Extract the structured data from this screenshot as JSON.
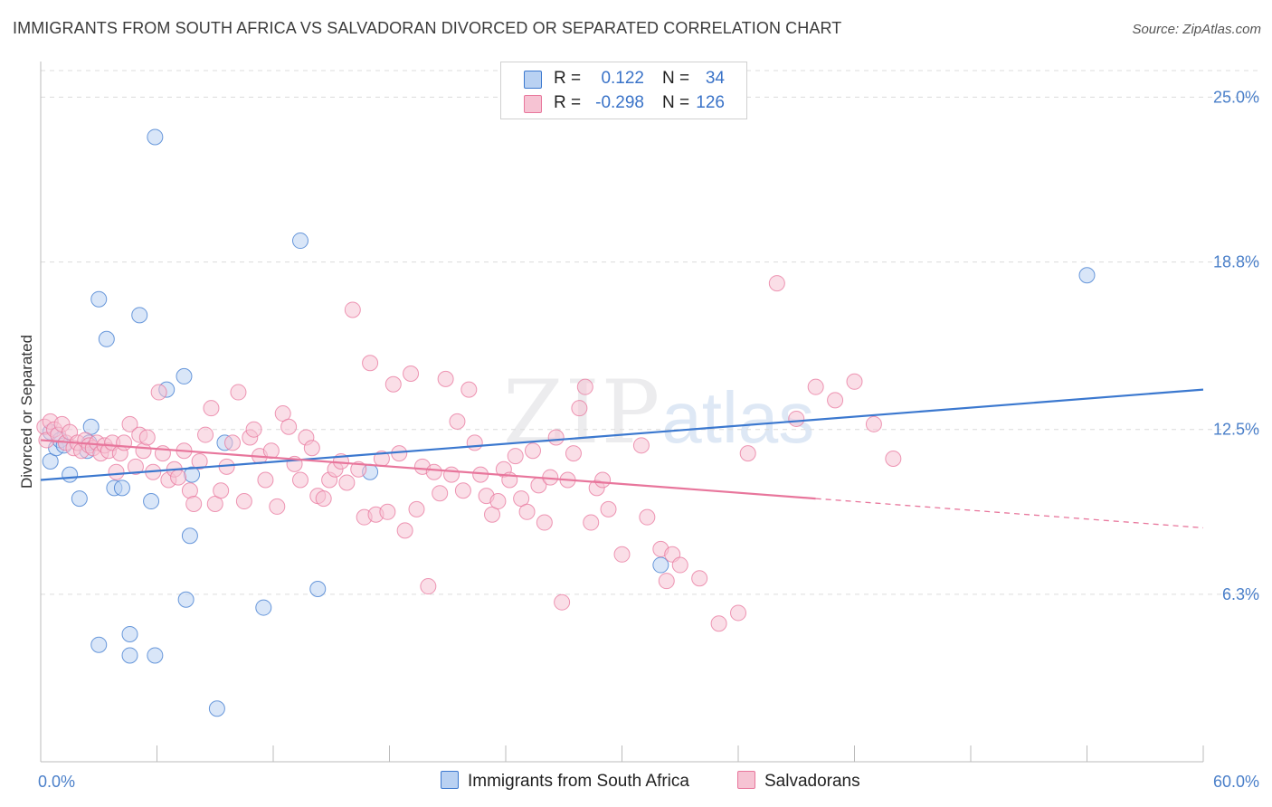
{
  "title": "IMMIGRANTS FROM SOUTH AFRICA VS SALVADORAN DIVORCED OR SEPARATED CORRELATION CHART",
  "source": "Source: ZipAtlas.com",
  "watermark": {
    "zip": "ZIP",
    "atlas": "atlas"
  },
  "colors": {
    "blue": "#3b78cf",
    "pink": "#e8769c",
    "blue_fill": "#b9d1f2",
    "pink_fill": "#f6c3d3",
    "tick_label": "#4a7fc9"
  },
  "legend_top": {
    "rows": [
      {
        "swatch": "blue",
        "r_label": "R =",
        "r_value": "0.122",
        "n_label": "N =",
        "n_value": "34"
      },
      {
        "swatch": "pink",
        "r_label": "R =",
        "r_value": "-0.298",
        "n_label": "N =",
        "n_value": "126"
      }
    ]
  },
  "legend_bottom": [
    {
      "swatch": "blue",
      "label": "Immigrants from South Africa"
    },
    {
      "swatch": "pink",
      "label": "Salvadorans"
    }
  ],
  "chart_data": {
    "type": "scatter",
    "title": "IMMIGRANTS FROM SOUTH AFRICA VS SALVADORAN DIVORCED OR SEPARATED CORRELATION CHART",
    "xlabel": "",
    "ylabel": "Divorced or Separated",
    "xlim": [
      0,
      60
    ],
    "ylim": [
      0,
      26
    ],
    "x_tick_labels": [
      {
        "value": 0,
        "label": "0.0%"
      },
      {
        "value": 60,
        "label": "60.0%"
      }
    ],
    "y_tick_labels": [
      {
        "value": 6.3,
        "label": "6.3%"
      },
      {
        "value": 12.5,
        "label": "12.5%"
      },
      {
        "value": 18.8,
        "label": "18.8%"
      },
      {
        "value": 25.0,
        "label": "25.0%"
      }
    ],
    "grid": true,
    "series": [
      {
        "name": "Immigrants from South Africa",
        "color": "blue",
        "points": [
          [
            0.5,
            12.4
          ],
          [
            0.5,
            11.3
          ],
          [
            0.8,
            11.8
          ],
          [
            1.0,
            12.1
          ],
          [
            1.2,
            11.9
          ],
          [
            1.5,
            10.8
          ],
          [
            2.0,
            9.9
          ],
          [
            2.4,
            11.7
          ],
          [
            2.6,
            12.6
          ],
          [
            2.5,
            12.0
          ],
          [
            3.0,
            4.4
          ],
          [
            3.0,
            17.4
          ],
          [
            3.4,
            15.9
          ],
          [
            3.8,
            10.3
          ],
          [
            4.2,
            10.3
          ],
          [
            4.6,
            4.0
          ],
          [
            4.6,
            4.8
          ],
          [
            5.1,
            16.8
          ],
          [
            5.7,
            9.8
          ],
          [
            5.9,
            23.5
          ],
          [
            5.9,
            4.0
          ],
          [
            6.5,
            14.0
          ],
          [
            7.4,
            14.5
          ],
          [
            7.5,
            6.1
          ],
          [
            7.8,
            10.8
          ],
          [
            7.7,
            8.5
          ],
          [
            9.1,
            2.0
          ],
          [
            9.5,
            12.0
          ],
          [
            11.5,
            5.8
          ],
          [
            13.4,
            19.6
          ],
          [
            14.3,
            6.5
          ],
          [
            17.0,
            10.9
          ],
          [
            32.0,
            7.4
          ],
          [
            54.0,
            18.3
          ]
        ],
        "trendline": {
          "x": [
            0,
            60
          ],
          "y": [
            10.6,
            14.0
          ]
        }
      },
      {
        "name": "Salvadorans",
        "color": "pink",
        "points": [
          [
            0.2,
            12.6
          ],
          [
            0.3,
            12.1
          ],
          [
            0.5,
            12.8
          ],
          [
            0.7,
            12.5
          ],
          [
            0.9,
            12.3
          ],
          [
            1.1,
            12.7
          ],
          [
            1.3,
            12.0
          ],
          [
            1.5,
            12.4
          ],
          [
            1.7,
            11.8
          ],
          [
            1.9,
            12.0
          ],
          [
            2.1,
            11.7
          ],
          [
            2.3,
            12.1
          ],
          [
            2.5,
            11.9
          ],
          [
            2.7,
            11.8
          ],
          [
            2.9,
            12.0
          ],
          [
            3.1,
            11.6
          ],
          [
            3.3,
            11.9
          ],
          [
            3.5,
            11.7
          ],
          [
            3.7,
            12.0
          ],
          [
            3.9,
            10.9
          ],
          [
            4.1,
            11.6
          ],
          [
            4.3,
            12.0
          ],
          [
            4.6,
            12.7
          ],
          [
            4.9,
            11.1
          ],
          [
            5.1,
            12.3
          ],
          [
            5.3,
            11.7
          ],
          [
            5.5,
            12.2
          ],
          [
            5.8,
            10.9
          ],
          [
            6.1,
            13.9
          ],
          [
            6.3,
            11.6
          ],
          [
            6.6,
            10.6
          ],
          [
            6.9,
            11.0
          ],
          [
            7.1,
            10.7
          ],
          [
            7.4,
            11.7
          ],
          [
            7.7,
            10.2
          ],
          [
            7.9,
            9.7
          ],
          [
            8.2,
            11.3
          ],
          [
            8.5,
            12.3
          ],
          [
            8.8,
            13.3
          ],
          [
            9.0,
            9.7
          ],
          [
            9.3,
            10.2
          ],
          [
            9.6,
            11.1
          ],
          [
            9.9,
            12.0
          ],
          [
            10.2,
            13.9
          ],
          [
            10.5,
            9.8
          ],
          [
            10.8,
            12.2
          ],
          [
            11.0,
            12.5
          ],
          [
            11.3,
            11.5
          ],
          [
            11.6,
            10.6
          ],
          [
            11.9,
            11.7
          ],
          [
            12.2,
            9.6
          ],
          [
            12.5,
            13.1
          ],
          [
            12.8,
            12.6
          ],
          [
            13.1,
            11.2
          ],
          [
            13.4,
            10.6
          ],
          [
            13.7,
            12.2
          ],
          [
            14.0,
            11.8
          ],
          [
            14.3,
            10.0
          ],
          [
            14.6,
            9.9
          ],
          [
            14.9,
            10.6
          ],
          [
            15.2,
            11.0
          ],
          [
            15.5,
            11.3
          ],
          [
            15.8,
            10.5
          ],
          [
            16.1,
            17.0
          ],
          [
            16.4,
            11.0
          ],
          [
            16.7,
            9.2
          ],
          [
            17.0,
            15.0
          ],
          [
            17.3,
            9.3
          ],
          [
            17.6,
            11.4
          ],
          [
            17.9,
            9.4
          ],
          [
            18.2,
            14.2
          ],
          [
            18.5,
            11.6
          ],
          [
            18.8,
            8.7
          ],
          [
            19.1,
            14.6
          ],
          [
            19.4,
            9.5
          ],
          [
            19.7,
            11.1
          ],
          [
            20.0,
            6.6
          ],
          [
            20.3,
            10.9
          ],
          [
            20.6,
            10.1
          ],
          [
            20.9,
            14.4
          ],
          [
            21.2,
            10.8
          ],
          [
            21.5,
            12.8
          ],
          [
            21.8,
            10.2
          ],
          [
            22.1,
            14.0
          ],
          [
            22.4,
            12.0
          ],
          [
            22.7,
            10.8
          ],
          [
            23.0,
            10.0
          ],
          [
            23.3,
            9.3
          ],
          [
            23.6,
            9.8
          ],
          [
            23.9,
            11.0
          ],
          [
            24.2,
            10.6
          ],
          [
            24.5,
            11.5
          ],
          [
            24.8,
            9.9
          ],
          [
            25.1,
            9.4
          ],
          [
            25.4,
            11.7
          ],
          [
            25.7,
            10.4
          ],
          [
            26.0,
            9.0
          ],
          [
            26.3,
            10.7
          ],
          [
            26.6,
            12.2
          ],
          [
            26.9,
            6.0
          ],
          [
            27.2,
            10.6
          ],
          [
            27.5,
            11.6
          ],
          [
            27.8,
            13.3
          ],
          [
            28.1,
            14.1
          ],
          [
            28.4,
            9.0
          ],
          [
            28.7,
            10.3
          ],
          [
            29.0,
            10.6
          ],
          [
            29.3,
            9.5
          ],
          [
            30.0,
            7.8
          ],
          [
            31.0,
            11.9
          ],
          [
            31.3,
            9.2
          ],
          [
            32.0,
            8.0
          ],
          [
            32.3,
            6.8
          ],
          [
            32.6,
            7.8
          ],
          [
            33.0,
            7.4
          ],
          [
            34.0,
            6.9
          ],
          [
            35.0,
            5.2
          ],
          [
            36.0,
            5.6
          ],
          [
            36.5,
            11.6
          ],
          [
            38.0,
            18.0
          ],
          [
            39.0,
            12.9
          ],
          [
            40.0,
            14.1
          ],
          [
            41.0,
            13.6
          ],
          [
            42.0,
            14.3
          ],
          [
            43.0,
            12.7
          ],
          [
            44.0,
            11.4
          ]
        ],
        "trendline": {
          "x": [
            0,
            40
          ],
          "y": [
            12.1,
            9.9
          ]
        },
        "trendline_dashed": {
          "x": [
            40,
            60
          ],
          "y": [
            9.9,
            8.8
          ]
        }
      }
    ]
  }
}
